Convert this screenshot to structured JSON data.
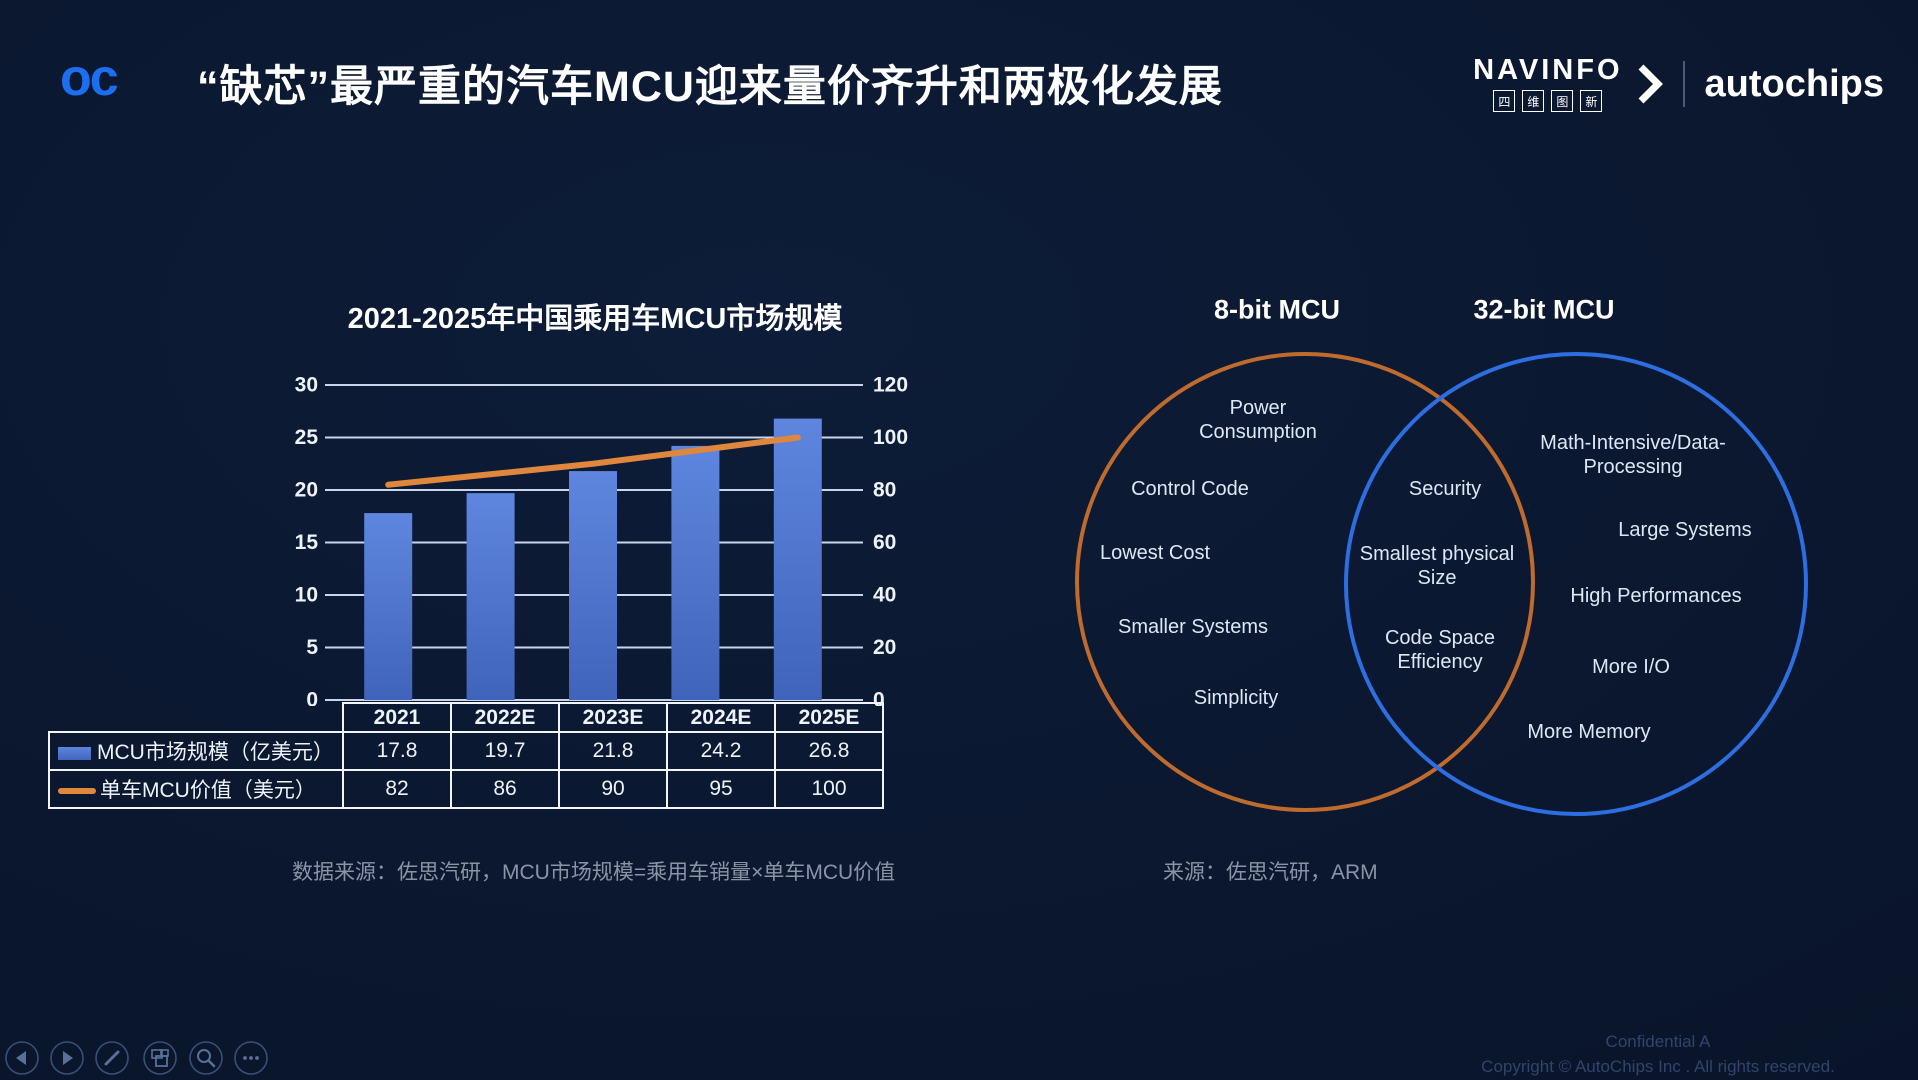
{
  "header": {
    "logo_text": "oc",
    "title": "“缺芯”最严重的汽车MCU迎来量价齐升和两极化发展",
    "navinfo_wordmark": "NAVINFO",
    "navinfo_cjk": [
      "四",
      "维",
      "图",
      "新"
    ],
    "autochips_wordmark": "autochips"
  },
  "chart_data": {
    "type": "bar+line combo",
    "title": "2021-2025年中国乘用车MCU市场规模",
    "categories": [
      "2021",
      "2022E",
      "2023E",
      "2024E",
      "2025E"
    ],
    "series": [
      {
        "name": "MCU市场规模（亿美元）",
        "type": "bar",
        "axis": "left",
        "color": "#4f75c8",
        "values": [
          17.8,
          19.7,
          21.8,
          24.2,
          26.8
        ]
      },
      {
        "name": "单车MCU价值（美元）",
        "type": "line",
        "axis": "right",
        "color": "#e0873e",
        "values": [
          82,
          86,
          90,
          95,
          100
        ]
      }
    ],
    "left_axis": {
      "min": 0,
      "max": 30,
      "ticks": [
        0,
        5,
        10,
        15,
        20,
        25,
        30
      ]
    },
    "right_axis": {
      "min": 0,
      "max": 120,
      "ticks": [
        0,
        20,
        40,
        60,
        80,
        100,
        120
      ]
    },
    "grid": true,
    "legend_position": "table-below"
  },
  "table": {
    "header": [
      "2021",
      "2022E",
      "2023E",
      "2024E",
      "2025E"
    ],
    "rows": [
      {
        "label": "MCU市场规模（亿美元）",
        "swatch": "bar-blue",
        "values": [
          "17.8",
          "19.7",
          "21.8",
          "24.2",
          "26.8"
        ]
      },
      {
        "label": "单车MCU价值（美元）",
        "swatch": "line-orange",
        "values": [
          "82",
          "86",
          "90",
          "95",
          "100"
        ]
      }
    ]
  },
  "left_source": "数据来源：佐思汽研，MCU市场规模=乘用车销量×单车MCU价值",
  "venn": {
    "left_title": "8-bit MCU",
    "right_title": "32-bit MCU",
    "left_color": "#c06b2e",
    "right_color": "#2d6fe0",
    "left_items": [
      "Power Consumption",
      "Control Code",
      "Lowest Cost",
      "Smaller Systems",
      "Simplicity"
    ],
    "middle_items": [
      "Security",
      "Smallest physical Size",
      "Code Space Efficiency"
    ],
    "right_items": [
      "Math-Intensive/Data-Processing",
      "Large Systems",
      "High Performances",
      "More I/O",
      "More Memory"
    ]
  },
  "right_source": "来源：佐思汽研，ARM",
  "footer": {
    "confidential": "Confidential A",
    "copyright": "Copyright © AutoChips Inc . All rights reserved.",
    "controls": [
      "previous-slide",
      "next-slide",
      "pen",
      "all-slides",
      "zoom",
      "more-options"
    ]
  },
  "colors": {
    "background": "#0a1730",
    "accent_blue": "#1d6ff2",
    "bar_blue": "#4f75c8",
    "line_orange": "#e0873e",
    "venn_orange": "#c06b2e",
    "venn_blue": "#2d6fe0"
  }
}
